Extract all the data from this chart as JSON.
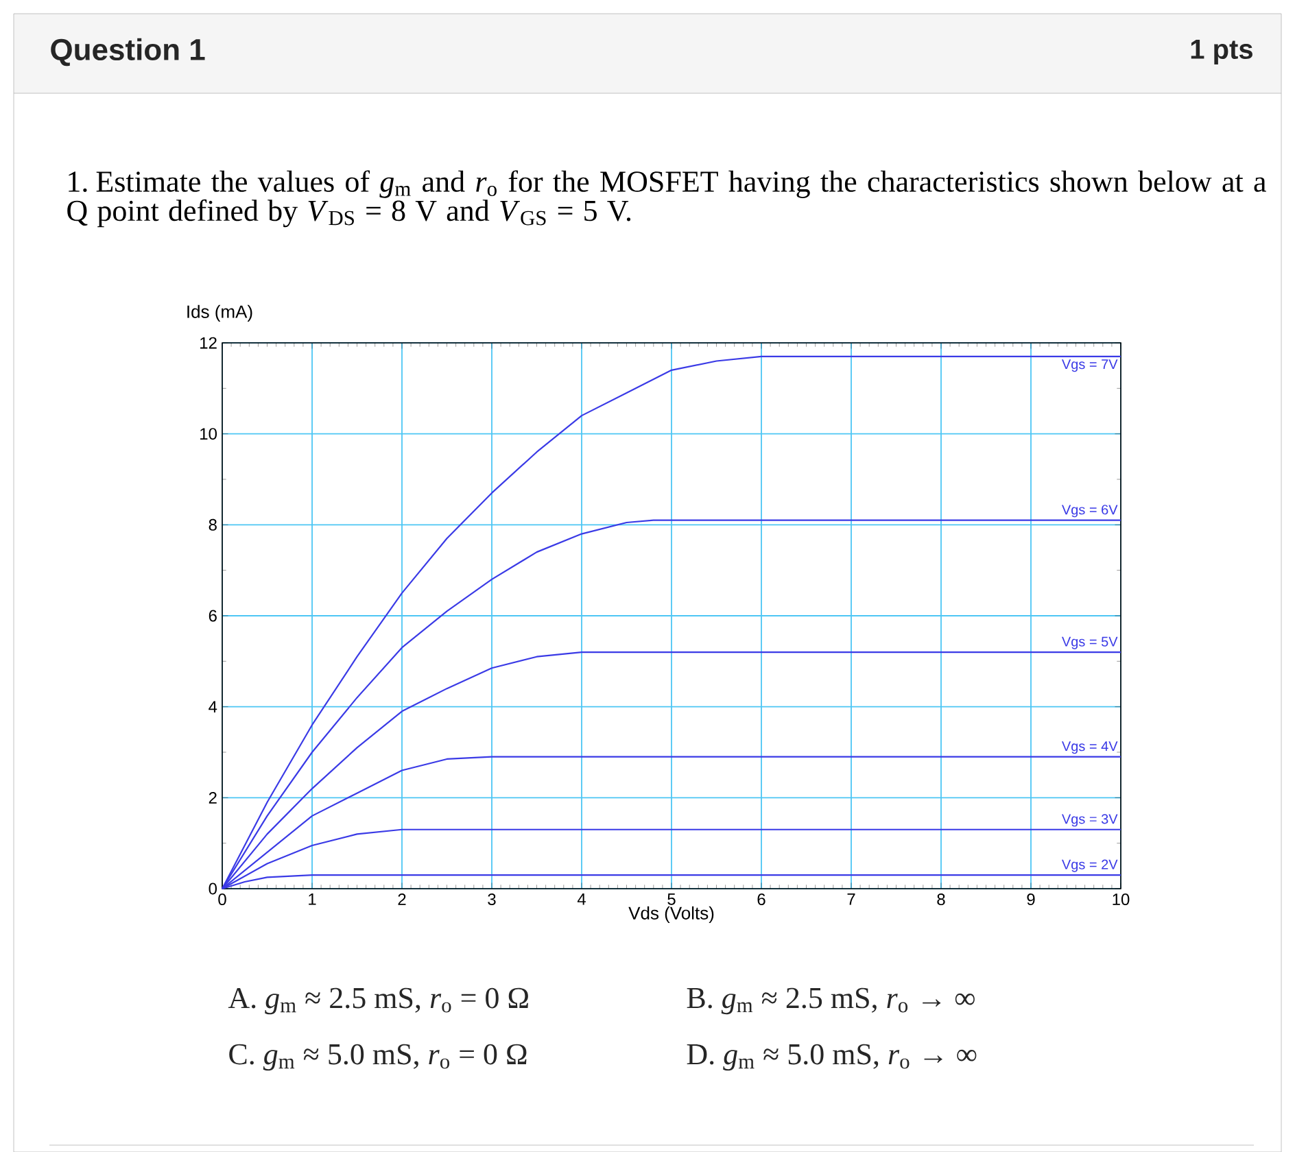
{
  "chart_data": {
    "type": "line",
    "title": "1. Estimate the values of *g*$_{m}$ and *r*$_{o}$ for the MOSFET having the characteristics shown below at a Q point defined by *V*$_{DS}$ = 8 V and *V*$_{GS}$ = 5 V.",
    "xlabel": "Vds (Volts)",
    "ylabel": "Ids (mA)",
    "xlim": [
      0,
      10
    ],
    "xticks": [
      0,
      1,
      2,
      3,
      4,
      5,
      6,
      7,
      8,
      9,
      10
    ],
    "ylim": [
      0,
      12
    ],
    "yticks": [
      0,
      2,
      4,
      6,
      8,
      10,
      12
    ],
    "grid": true,
    "line_style": "solid",
    "series": [
      {
        "name": "Vgs = 7V",
        "color": "#3a3ae6",
        "x": [
          0,
          0.5,
          1,
          1.5,
          2,
          2.5,
          3,
          3.5,
          4,
          4.5,
          5,
          5.5,
          6,
          10
        ],
        "values": [
          0,
          1.9,
          3.6,
          5.1,
          6.5,
          7.7,
          8.7,
          9.6,
          10.4,
          10.9,
          11.4,
          11.6,
          11.7,
          11.7
        ]
      },
      {
        "name": "Vgs = 6V",
        "color": "#3a3ae6",
        "x": [
          0,
          0.5,
          1,
          1.5,
          2,
          2.5,
          3,
          3.5,
          4,
          4.5,
          4.8,
          10
        ],
        "values": [
          0,
          1.6,
          3.0,
          4.2,
          5.3,
          6.1,
          6.8,
          7.4,
          7.8,
          8.05,
          8.1,
          8.1
        ]
      },
      {
        "name": "Vgs = 5V",
        "color": "#3a3ae6",
        "x": [
          0,
          0.5,
          1,
          1.5,
          2,
          2.5,
          3,
          3.5,
          4,
          10
        ],
        "values": [
          0,
          1.2,
          2.2,
          3.1,
          3.9,
          4.4,
          4.85,
          5.1,
          5.2,
          5.2
        ]
      },
      {
        "name": "Vgs = 4V",
        "color": "#3a3ae6",
        "x": [
          0,
          0.5,
          1,
          1.5,
          2,
          2.5,
          3,
          10
        ],
        "values": [
          0,
          0.8,
          1.6,
          2.1,
          2.6,
          2.85,
          2.9,
          2.9
        ]
      },
      {
        "name": "Vgs = 3V",
        "color": "#3a3ae6",
        "x": [
          0,
          0.5,
          1,
          1.5,
          2,
          10
        ],
        "values": [
          0,
          0.55,
          0.95,
          1.2,
          1.3,
          1.3
        ]
      },
      {
        "name": "Vgs = 2V",
        "color": "#3a3ae6",
        "x": [
          0,
          0.25,
          0.5,
          1,
          10
        ],
        "values": [
          0,
          0.15,
          0.25,
          0.3,
          0.3
        ]
      }
    ],
    "annotations": [
      "Question 1",
      "1 pts",
      "A. *g*$_{m}$ ≈ 2.5 mS, *r*$_{o}$ = 0 Ω",
      "B. *g*$_{m}$ ≈ 2.5 mS, *r*$_{o}$ → ∞",
      "C. *g*$_{m}$ ≈ 5.0 mS, *r*$_{o}$ = 0 Ω",
      "D. *g*$_{m}$ ≈ 5.0 mS, *r*$_{o}$ → ∞"
    ]
  }
}
